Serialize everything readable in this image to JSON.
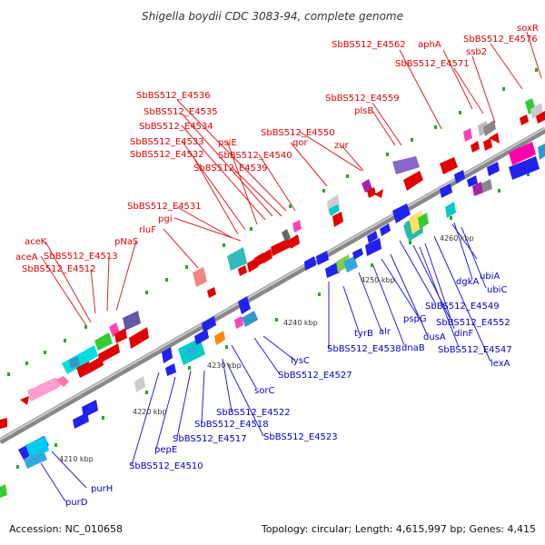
{
  "title": "Shigella boydii CDC 3083-94, complete genome",
  "footer": {
    "accession": "Accession: NC_010658",
    "summary": "Topology: circular; Length: 4,615,997 bp; Genes: 4,415"
  },
  "ticks": [
    "4210 kbp",
    "4220 kbp",
    "4230 kbp",
    "4240 kbp",
    "4250 kbp",
    "4260 kbp"
  ],
  "top_labels": [
    "soxR",
    "SbBS512_E4562",
    "aphA",
    "SbBS512_E4576",
    "SbBS512_E4571",
    "ssb2",
    "SbBS512_E4559",
    "plsB",
    "SbBS512_E4536",
    "SbBS512_E4535",
    "SbBS512_E4534",
    "psiE",
    "SbBS512_E4550",
    "zur",
    "qor",
    "SbBS512_E4533",
    "SbBS512_E4540",
    "SbBS512_E4532",
    "SbBS512_E4539",
    "SbBS512_E4531",
    "pgi",
    "rluF",
    "pNaS",
    "aceK",
    "SbBS512_E4513",
    "aceA",
    "SbBS512_E4512"
  ],
  "bottom_labels": [
    "4260 kbp",
    "ubiA",
    "dgkA",
    "ubiC",
    "SbBS512_E4549",
    "SbBS512_E4552",
    "pspG",
    "dinF",
    "tyrB",
    "alr",
    "dusA",
    "SbBS512_E4547",
    "SbBS512_E4538",
    "dnaB",
    "lexA",
    "lysC",
    "SbBS512_E4527",
    "sorC",
    "SbBS512_E4522",
    "SbBS512_E4518",
    "SbBS512_E4523",
    "SbBS512_E4517",
    "pepE",
    "SbBS512_E4510",
    "purH",
    "purD"
  ]
}
